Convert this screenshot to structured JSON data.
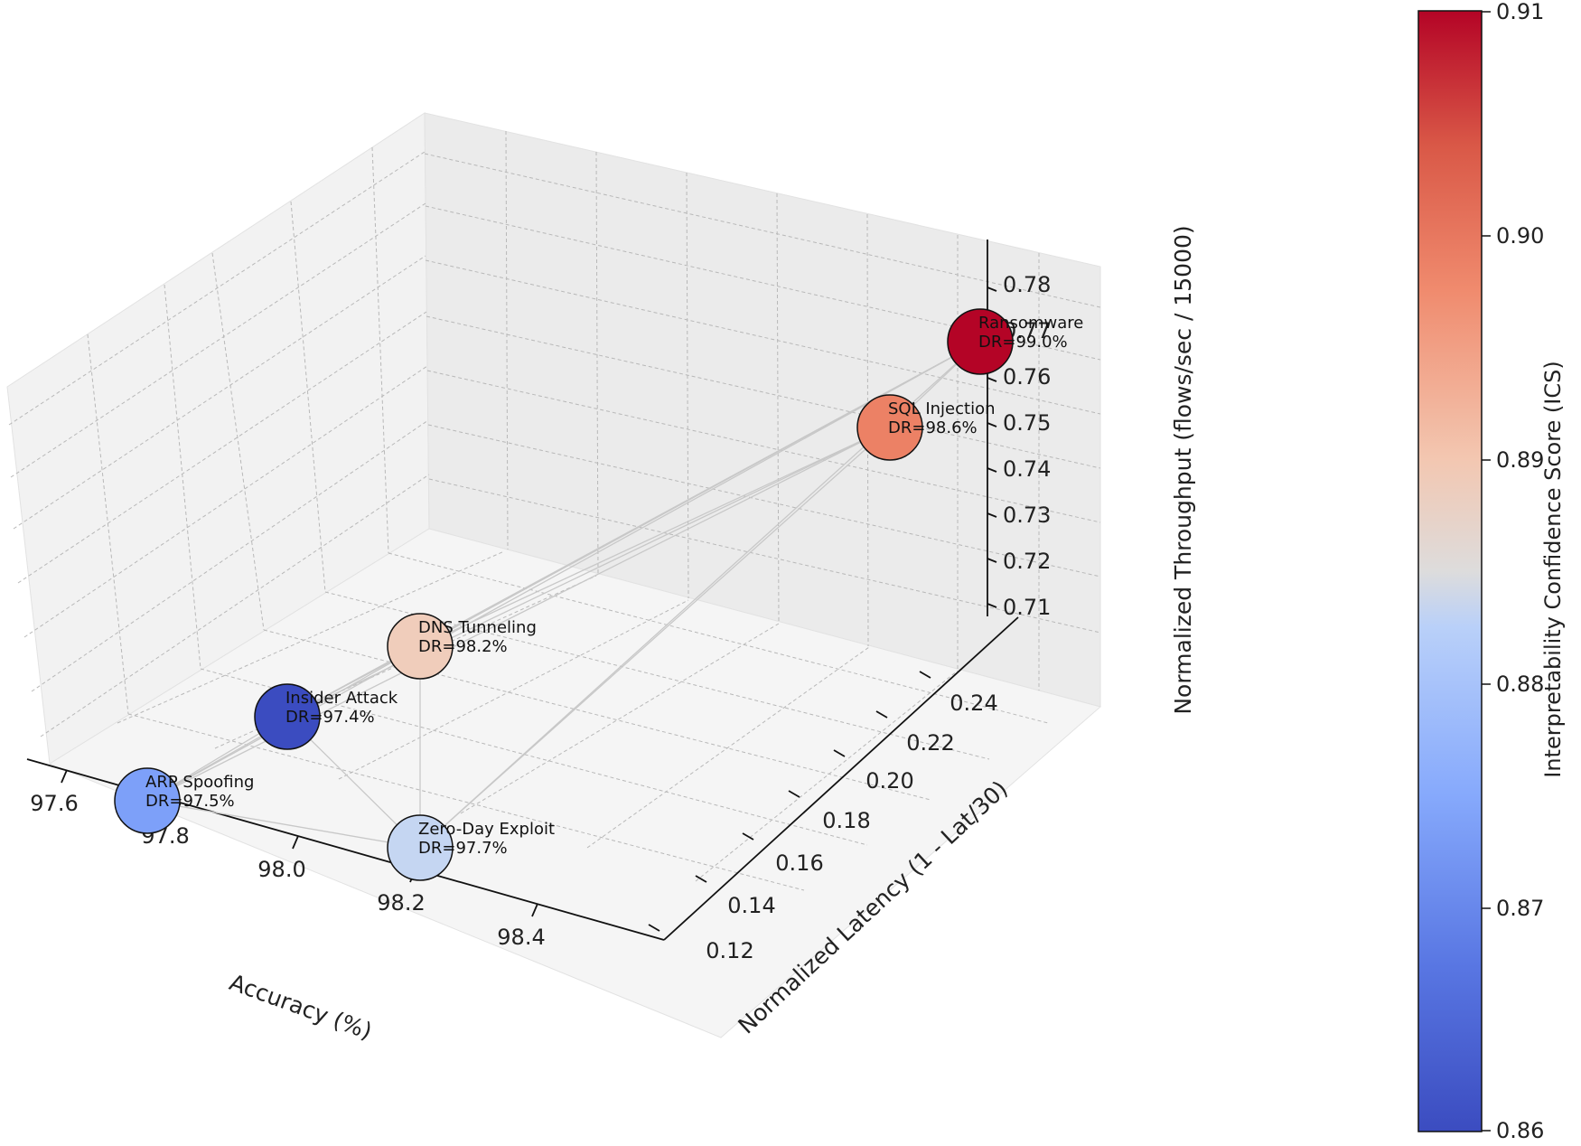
{
  "chart_data": {
    "type": "scatter3d",
    "xlabel": "Accuracy (%)",
    "ylabel": "Normalized Latency (1 - Lat/30)",
    "zlabel": "Normalized Throughput (flows/sec / 15000)",
    "xlim": [
      97.5,
      98.5
    ],
    "ylim": [
      0.12,
      0.25
    ],
    "zlim": [
      0.7,
      0.79
    ],
    "xticks": [
      "97.6",
      "97.8",
      "98.0",
      "98.2",
      "98.4"
    ],
    "yticks": [
      "0.12",
      "0.14",
      "0.16",
      "0.18",
      "0.20",
      "0.22",
      "0.24"
    ],
    "zticks": [
      "0.71",
      "0.72",
      "0.73",
      "0.74",
      "0.75",
      "0.76",
      "0.77",
      "0.78"
    ],
    "grid": true,
    "colorbar": {
      "label": "Interpretability Confidence Score (ICS)",
      "range": [
        0.86,
        0.91
      ],
      "ticks": [
        "0.86",
        "0.87",
        "0.88",
        "0.89",
        "0.90",
        "0.91"
      ],
      "colormap": "coolwarm"
    },
    "points": [
      {
        "name": "Ransomware",
        "dr_label": "DR=99.0%",
        "ics": 0.91,
        "color": "#b40426"
      },
      {
        "name": "SQL Injection",
        "dr_label": "DR=98.6%",
        "ics": 0.898,
        "color": "#ec8165"
      },
      {
        "name": "DNS Tunneling",
        "dr_label": "DR=98.2%",
        "ics": 0.889,
        "color": "#f0cdbb"
      },
      {
        "name": "Insider Attack",
        "dr_label": "DR=97.4%",
        "ics": 0.861,
        "color": "#3b4cc0"
      },
      {
        "name": "ARP Spoofing",
        "dr_label": "DR=97.5%",
        "ics": 0.871,
        "color": "#7da0f9"
      },
      {
        "name": "Zero-Day Exploit",
        "dr_label": "DR=97.7%",
        "ics": 0.878,
        "color": "#c5d6f2"
      }
    ]
  }
}
